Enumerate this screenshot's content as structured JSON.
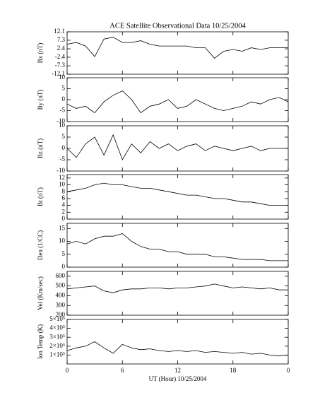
{
  "chart_data": [
    {
      "type": "line",
      "title": "ACE Satellite Observational Data   10/25/2004",
      "ylabel": "Bx (nT)",
      "color": "#000000",
      "x": [
        0,
        1,
        2,
        3,
        4,
        5,
        6,
        7,
        8,
        9,
        10,
        11,
        12,
        13,
        14,
        15,
        16,
        17,
        18,
        19,
        20,
        21,
        22,
        23,
        24
      ],
      "values": [
        5,
        6,
        4,
        -2,
        8,
        9,
        6,
        6,
        7,
        5,
        4,
        4,
        4,
        4,
        3,
        3,
        -3,
        1,
        2,
        1,
        3,
        2,
        3,
        3,
        3
      ],
      "xlim": [
        0,
        24
      ],
      "xticks": [
        0,
        6,
        12,
        18,
        {
          "value": 24,
          "label": "0"
        }
      ],
      "ylim": [
        -12.1,
        12.1
      ],
      "yticks": [
        -12.1,
        -7.3,
        -2.4,
        2.4,
        7.3,
        12.1
      ]
    },
    {
      "type": "line",
      "ylabel": "By (nT)",
      "color": "#000000",
      "x": [
        0,
        1,
        2,
        3,
        4,
        5,
        6,
        7,
        8,
        9,
        10,
        11,
        12,
        13,
        14,
        15,
        16,
        17,
        18,
        19,
        20,
        21,
        22,
        23,
        24
      ],
      "values": [
        -2,
        -4,
        -3,
        -6,
        -1,
        2,
        4,
        0,
        -6,
        -3,
        -2,
        0,
        -4,
        -3,
        0,
        -2,
        -4,
        -5,
        -4,
        -3,
        -1,
        -2,
        0,
        1,
        -1
      ],
      "xlim": [
        0,
        24
      ],
      "xticks": [
        0,
        6,
        12,
        18,
        {
          "value": 24,
          "label": "0"
        }
      ],
      "ylim": [
        -10,
        10
      ],
      "yticks": [
        -10,
        -5,
        0,
        5,
        10
      ]
    },
    {
      "type": "line",
      "ylabel": "Bz (nT)",
      "color": "#000000",
      "x": [
        0,
        1,
        2,
        3,
        4,
        5,
        6,
        7,
        8,
        9,
        10,
        11,
        12,
        13,
        14,
        15,
        16,
        17,
        18,
        19,
        20,
        21,
        22,
        23,
        24
      ],
      "values": [
        0,
        -4,
        2,
        5,
        -3,
        6,
        -5,
        2,
        -2,
        3,
        0,
        2,
        -1,
        1,
        2,
        -1,
        1,
        0,
        -1,
        0,
        1,
        -1,
        0,
        0,
        0
      ],
      "xlim": [
        0,
        24
      ],
      "xticks": [
        0,
        6,
        12,
        18,
        {
          "value": 24,
          "label": "0"
        }
      ],
      "ylim": [
        -10,
        10
      ],
      "yticks": [
        -10,
        -5,
        0,
        5,
        10
      ]
    },
    {
      "type": "line",
      "ylabel": "Bt (nT)",
      "color": "#000000",
      "x": [
        0,
        1,
        2,
        3,
        4,
        5,
        6,
        7,
        8,
        9,
        10,
        11,
        12,
        13,
        14,
        15,
        16,
        17,
        18,
        19,
        20,
        21,
        22,
        23,
        24
      ],
      "values": [
        8,
        8.5,
        9,
        10,
        10.5,
        10,
        10,
        9.5,
        9,
        9,
        8.5,
        8,
        7.5,
        7,
        7,
        6.5,
        6,
        6,
        5.5,
        5,
        5,
        4.5,
        4,
        4,
        4
      ],
      "xlim": [
        0,
        24
      ],
      "xticks": [
        0,
        6,
        12,
        18,
        {
          "value": 24,
          "label": "0"
        }
      ],
      "ylim": [
        0,
        13
      ],
      "yticks": [
        0,
        2,
        4,
        6,
        8,
        10,
        12
      ]
    },
    {
      "type": "line",
      "ylabel": "Den (1/CC)",
      "color": "#000000",
      "x": [
        0,
        1,
        2,
        3,
        4,
        5,
        6,
        7,
        8,
        9,
        10,
        11,
        12,
        13,
        14,
        15,
        16,
        17,
        18,
        19,
        20,
        21,
        22,
        23,
        24
      ],
      "values": [
        9,
        10,
        9,
        11,
        12,
        12,
        13,
        10,
        8,
        7,
        7,
        6,
        6,
        5,
        5,
        5,
        4,
        4,
        3.5,
        3,
        3,
        3,
        2.5,
        2.5,
        2.5
      ],
      "xlim": [
        0,
        24
      ],
      "xticks": [
        0,
        6,
        12,
        18,
        {
          "value": 24,
          "label": "0"
        }
      ],
      "ylim": [
        0,
        17
      ],
      "yticks": [
        0,
        5,
        10,
        15
      ]
    },
    {
      "type": "line",
      "ylabel": "Vel (Km/sec)",
      "color": "#000000",
      "x": [
        0,
        1,
        2,
        3,
        4,
        5,
        6,
        7,
        8,
        9,
        10,
        11,
        12,
        13,
        14,
        15,
        16,
        17,
        18,
        19,
        20,
        21,
        22,
        23,
        24
      ],
      "values": [
        470,
        480,
        490,
        500,
        450,
        430,
        460,
        470,
        470,
        480,
        480,
        470,
        480,
        480,
        490,
        500,
        520,
        500,
        480,
        490,
        480,
        470,
        480,
        460,
        460
      ],
      "xlim": [
        0,
        24
      ],
      "xticks": [
        0,
        6,
        12,
        18,
        {
          "value": 24,
          "label": "0"
        }
      ],
      "ylim": [
        200,
        650
      ],
      "yticks": [
        200,
        300,
        400,
        500,
        600
      ]
    },
    {
      "type": "line",
      "ylabel": "Ion Temp (K)",
      "xlabel": "UT (Hour)   10/25/2004",
      "color": "#000000",
      "x": [
        0,
        1,
        2,
        3,
        4,
        5,
        6,
        7,
        8,
        9,
        10,
        11,
        12,
        13,
        14,
        15,
        16,
        17,
        18,
        19,
        20,
        21,
        22,
        23,
        24
      ],
      "values": [
        150000,
        180000,
        200000,
        250000,
        180000,
        120000,
        220000,
        180000,
        160000,
        170000,
        150000,
        140000,
        150000,
        140000,
        150000,
        130000,
        140000,
        130000,
        120000,
        130000,
        110000,
        120000,
        100000,
        90000,
        100000
      ],
      "xlim": [
        0,
        24
      ],
      "xticks": [
        0,
        6,
        12,
        18,
        {
          "value": 24,
          "label": "0"
        }
      ],
      "ylim": [
        0,
        500000
      ],
      "yticks": [
        {
          "value": 100000,
          "label": "1×10⁵"
        },
        {
          "value": 200000,
          "label": "2×10⁵"
        },
        {
          "value": 300000,
          "label": "3×10⁵"
        },
        {
          "value": 400000,
          "label": "4×10⁵"
        },
        {
          "value": 500000,
          "label": "5×10⁵"
        }
      ]
    }
  ]
}
